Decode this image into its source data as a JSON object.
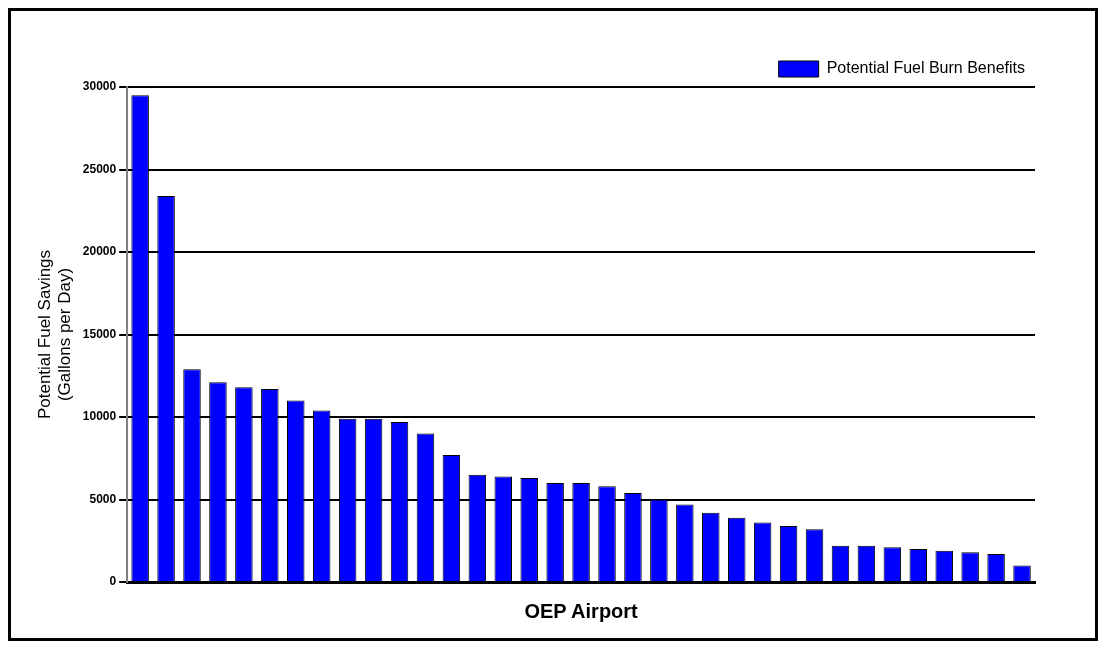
{
  "chart_data": {
    "type": "bar",
    "xlabel": "OEP Airport",
    "ylabel": "Potential Fuel Savings (Gallons per Day)",
    "categories": [
      null,
      null,
      null,
      null,
      null,
      null,
      null,
      null,
      null,
      null,
      null,
      null,
      null,
      null,
      null,
      null,
      null,
      null,
      null,
      null,
      null,
      null,
      null,
      null,
      null,
      null,
      null,
      null,
      null,
      null,
      null,
      null,
      null,
      null,
      null
    ],
    "series": [
      {
        "name": "Potential Fuel Burn Benefits",
        "color": "#0000ff",
        "values": [
          29500,
          23400,
          12900,
          12100,
          11800,
          11700,
          11000,
          10400,
          9900,
          9900,
          9700,
          9000,
          7700,
          6500,
          6400,
          6300,
          6000,
          6000,
          5800,
          5400,
          5000,
          4700,
          4200,
          3900,
          3600,
          3400,
          3200,
          2200,
          2200,
          2100,
          2000,
          1900,
          1800,
          1700,
          1000
        ]
      }
    ],
    "ylim": [
      0,
      30000
    ],
    "yticks": [
      0,
      5000,
      10000,
      15000,
      20000,
      25000,
      30000
    ],
    "grid": "y",
    "legend": "top right"
  }
}
